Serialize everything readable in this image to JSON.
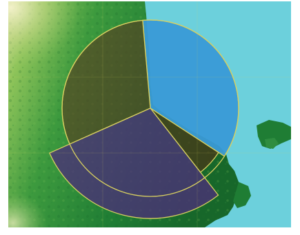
{
  "map": {
    "basemap": "terrain-elevation",
    "colors": {
      "ocean": "#6cd0dc",
      "lowland": "#1e7a32",
      "midland": "#5aa83c",
      "highland": "#c8d88a",
      "peak": "#f2f0c8",
      "outline": "#d8d060"
    },
    "overlay": {
      "shape": "sector-diagram",
      "sectors": [
        {
          "id": "north-east",
          "fill": "#3a9ad6",
          "opacity": 0.95
        },
        {
          "id": "north-west",
          "fill": "#5a3a20",
          "opacity": 0.62
        },
        {
          "id": "south-east-narrow",
          "fill": "#4a3418",
          "opacity": 0.72
        },
        {
          "id": "south",
          "fill": "#4b2f78",
          "opacity": 0.78
        }
      ]
    }
  }
}
